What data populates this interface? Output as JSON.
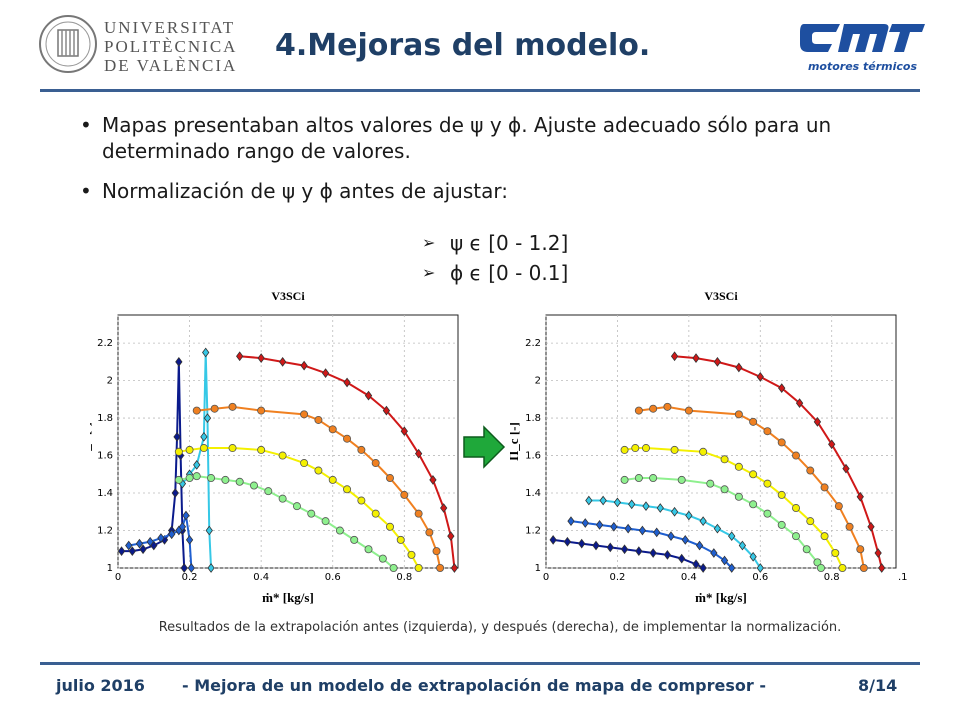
{
  "logos": {
    "upv": [
      "UNIVERSITAT",
      "POLITÈCNICA",
      "DE VALÈNCIA"
    ],
    "cmt_sub": "motores térmicos"
  },
  "slide": {
    "title": "4.Mejoras del modelo."
  },
  "bullets": [
    {
      "symbol": "•",
      "text": "Mapas presentaban altos valores de ψ y ϕ. Ajuste adecuado sólo para un determinado rango de valores."
    },
    {
      "symbol": "•",
      "text": "Normalización de ψ y ϕ antes de ajustar:"
    }
  ],
  "subbullets": [
    {
      "symbol": "➢",
      "text": "ψ ϵ [0 - 1.2]"
    },
    {
      "symbol": "➢",
      "text": "ϕ ϵ [0 - 0.1]"
    }
  ],
  "plots": {
    "left_title": "V3SCi",
    "right_title": "V3SCi",
    "ylabel": "Π_c [-]",
    "xlabel": "ṁ* [kg/s]",
    "right_edge_tick": ".1"
  },
  "caption": "Resultados de la extrapolación antes (izquierda), y después (derecha), de implementar la normalización.",
  "footer": {
    "date": "julio 2016",
    "title": "- Mejora de un modelo de extrapolación de mapa de compresor -",
    "page": "8/14"
  },
  "chart_data": [
    {
      "type": "scatter",
      "title": "V3SCi",
      "xlabel": "ṁ* [kg/s]",
      "ylabel": "Πc [-]",
      "xlim": [
        0,
        0.95
      ],
      "ylim": [
        1,
        2.35
      ],
      "xticks": [
        "0",
        "0.2",
        "0.4",
        "0.6",
        "0.8"
      ],
      "yticks": [
        "1",
        "1.2",
        "1.4",
        "1.6",
        "1.8",
        "2",
        "2.2"
      ],
      "grid": true,
      "series": [
        {
          "color": "#0a1a8c",
          "marker": "diamond",
          "points": [
            [
              0.01,
              1.09
            ],
            [
              0.04,
              1.09
            ],
            [
              0.07,
              1.1
            ],
            [
              0.1,
              1.12
            ],
            [
              0.13,
              1.15
            ],
            [
              0.15,
              1.2
            ],
            [
              0.16,
              1.4
            ],
            [
              0.165,
              1.7
            ],
            [
              0.17,
              2.1
            ],
            [
              0.175,
              1.6
            ],
            [
              0.18,
              1.2
            ],
            [
              0.185,
              1.0
            ]
          ]
        },
        {
          "color": "#1f5fd0",
          "marker": "diamond",
          "points": [
            [
              0.03,
              1.12
            ],
            [
              0.06,
              1.13
            ],
            [
              0.09,
              1.14
            ],
            [
              0.12,
              1.16
            ],
            [
              0.15,
              1.18
            ],
            [
              0.17,
              1.2
            ],
            [
              0.18,
              1.22
            ],
            [
              0.19,
              1.28
            ],
            [
              0.2,
              1.15
            ],
            [
              0.205,
              1.0
            ]
          ]
        },
        {
          "color": "#36c8e6",
          "marker": "diamond",
          "points": [
            [
              0.18,
              1.45
            ],
            [
              0.2,
              1.5
            ],
            [
              0.22,
              1.55
            ],
            [
              0.24,
              1.7
            ],
            [
              0.245,
              2.15
            ],
            [
              0.25,
              1.8
            ],
            [
              0.255,
              1.2
            ],
            [
              0.26,
              1.0
            ]
          ]
        },
        {
          "color": "#8ef08e",
          "marker": "circle",
          "points": [
            [
              0.17,
              1.47
            ],
            [
              0.2,
              1.48
            ],
            [
              0.22,
              1.49
            ],
            [
              0.26,
              1.48
            ],
            [
              0.3,
              1.47
            ],
            [
              0.34,
              1.46
            ],
            [
              0.38,
              1.44
            ],
            [
              0.42,
              1.41
            ],
            [
              0.46,
              1.37
            ],
            [
              0.5,
              1.33
            ],
            [
              0.54,
              1.29
            ],
            [
              0.58,
              1.25
            ],
            [
              0.62,
              1.2
            ],
            [
              0.66,
              1.15
            ],
            [
              0.7,
              1.1
            ],
            [
              0.74,
              1.05
            ],
            [
              0.77,
              1.0
            ]
          ]
        },
        {
          "color": "#f4f000",
          "marker": "circle",
          "points": [
            [
              0.17,
              1.62
            ],
            [
              0.2,
              1.63
            ],
            [
              0.24,
              1.64
            ],
            [
              0.32,
              1.64
            ],
            [
              0.4,
              1.63
            ],
            [
              0.46,
              1.6
            ],
            [
              0.52,
              1.56
            ],
            [
              0.56,
              1.52
            ],
            [
              0.6,
              1.47
            ],
            [
              0.64,
              1.42
            ],
            [
              0.68,
              1.36
            ],
            [
              0.72,
              1.29
            ],
            [
              0.76,
              1.22
            ],
            [
              0.79,
              1.15
            ],
            [
              0.82,
              1.07
            ],
            [
              0.84,
              1.0
            ]
          ]
        },
        {
          "color": "#f08020",
          "marker": "circle",
          "points": [
            [
              0.22,
              1.84
            ],
            [
              0.27,
              1.85
            ],
            [
              0.32,
              1.86
            ],
            [
              0.4,
              1.84
            ],
            [
              0.52,
              1.82
            ],
            [
              0.56,
              1.79
            ],
            [
              0.6,
              1.74
            ],
            [
              0.64,
              1.69
            ],
            [
              0.68,
              1.63
            ],
            [
              0.72,
              1.56
            ],
            [
              0.76,
              1.48
            ],
            [
              0.8,
              1.39
            ],
            [
              0.84,
              1.29
            ],
            [
              0.87,
              1.19
            ],
            [
              0.89,
              1.09
            ],
            [
              0.9,
              1.0
            ]
          ]
        },
        {
          "color": "#d01818",
          "marker": "diamond",
          "points": [
            [
              0.34,
              2.13
            ],
            [
              0.4,
              2.12
            ],
            [
              0.46,
              2.1
            ],
            [
              0.52,
              2.08
            ],
            [
              0.58,
              2.04
            ],
            [
              0.64,
              1.99
            ],
            [
              0.7,
              1.92
            ],
            [
              0.75,
              1.84
            ],
            [
              0.8,
              1.73
            ],
            [
              0.84,
              1.61
            ],
            [
              0.88,
              1.47
            ],
            [
              0.91,
              1.32
            ],
            [
              0.93,
              1.17
            ],
            [
              0.94,
              1.0
            ]
          ]
        }
      ]
    },
    {
      "type": "scatter",
      "title": "V3SCi",
      "xlabel": "ṁ* [kg/s]",
      "ylabel": "Πc [-]",
      "xlim": [
        0,
        0.98
      ],
      "ylim": [
        1,
        2.35
      ],
      "xticks": [
        "0",
        "0.2",
        "0.4",
        "0.6",
        "0.8"
      ],
      "yticks": [
        "1",
        "1.2",
        "1.4",
        "1.6",
        "1.8",
        "2",
        "2.2"
      ],
      "grid": true,
      "series": [
        {
          "color": "#0a1a8c",
          "marker": "diamond",
          "points": [
            [
              0.02,
              1.15
            ],
            [
              0.06,
              1.14
            ],
            [
              0.1,
              1.13
            ],
            [
              0.14,
              1.12
            ],
            [
              0.18,
              1.11
            ],
            [
              0.22,
              1.1
            ],
            [
              0.26,
              1.09
            ],
            [
              0.3,
              1.08
            ],
            [
              0.34,
              1.07
            ],
            [
              0.38,
              1.05
            ],
            [
              0.42,
              1.02
            ],
            [
              0.44,
              1.0
            ]
          ]
        },
        {
          "color": "#1f5fd0",
          "marker": "diamond",
          "points": [
            [
              0.07,
              1.25
            ],
            [
              0.11,
              1.24
            ],
            [
              0.15,
              1.23
            ],
            [
              0.19,
              1.22
            ],
            [
              0.23,
              1.21
            ],
            [
              0.27,
              1.2
            ],
            [
              0.31,
              1.19
            ],
            [
              0.35,
              1.17
            ],
            [
              0.39,
              1.15
            ],
            [
              0.43,
              1.12
            ],
            [
              0.47,
              1.08
            ],
            [
              0.5,
              1.04
            ],
            [
              0.52,
              1.0
            ]
          ]
        },
        {
          "color": "#36c8e6",
          "marker": "diamond",
          "points": [
            [
              0.12,
              1.36
            ],
            [
              0.16,
              1.36
            ],
            [
              0.2,
              1.35
            ],
            [
              0.24,
              1.34
            ],
            [
              0.28,
              1.33
            ],
            [
              0.32,
              1.32
            ],
            [
              0.36,
              1.3
            ],
            [
              0.4,
              1.28
            ],
            [
              0.44,
              1.25
            ],
            [
              0.48,
              1.21
            ],
            [
              0.52,
              1.17
            ],
            [
              0.55,
              1.12
            ],
            [
              0.58,
              1.06
            ],
            [
              0.6,
              1.0
            ]
          ]
        },
        {
          "color": "#8ef08e",
          "marker": "circle",
          "points": [
            [
              0.22,
              1.47
            ],
            [
              0.26,
              1.48
            ],
            [
              0.3,
              1.48
            ],
            [
              0.38,
              1.47
            ],
            [
              0.46,
              1.45
            ],
            [
              0.5,
              1.42
            ],
            [
              0.54,
              1.38
            ],
            [
              0.58,
              1.34
            ],
            [
              0.62,
              1.29
            ],
            [
              0.66,
              1.23
            ],
            [
              0.7,
              1.17
            ],
            [
              0.73,
              1.1
            ],
            [
              0.76,
              1.03
            ],
            [
              0.77,
              1.0
            ]
          ]
        },
        {
          "color": "#f4f000",
          "marker": "circle",
          "points": [
            [
              0.22,
              1.63
            ],
            [
              0.25,
              1.64
            ],
            [
              0.28,
              1.64
            ],
            [
              0.36,
              1.63
            ],
            [
              0.44,
              1.62
            ],
            [
              0.5,
              1.58
            ],
            [
              0.54,
              1.54
            ],
            [
              0.58,
              1.5
            ],
            [
              0.62,
              1.45
            ],
            [
              0.66,
              1.39
            ],
            [
              0.7,
              1.32
            ],
            [
              0.74,
              1.25
            ],
            [
              0.78,
              1.17
            ],
            [
              0.81,
              1.08
            ],
            [
              0.83,
              1.0
            ]
          ]
        },
        {
          "color": "#f08020",
          "marker": "circle",
          "points": [
            [
              0.26,
              1.84
            ],
            [
              0.3,
              1.85
            ],
            [
              0.34,
              1.86
            ],
            [
              0.4,
              1.84
            ],
            [
              0.54,
              1.82
            ],
            [
              0.58,
              1.78
            ],
            [
              0.62,
              1.73
            ],
            [
              0.66,
              1.67
            ],
            [
              0.7,
              1.6
            ],
            [
              0.74,
              1.52
            ],
            [
              0.78,
              1.43
            ],
            [
              0.82,
              1.33
            ],
            [
              0.85,
              1.22
            ],
            [
              0.88,
              1.1
            ],
            [
              0.89,
              1.0
            ]
          ]
        },
        {
          "color": "#d01818",
          "marker": "diamond",
          "points": [
            [
              0.36,
              2.13
            ],
            [
              0.42,
              2.12
            ],
            [
              0.48,
              2.1
            ],
            [
              0.54,
              2.07
            ],
            [
              0.6,
              2.02
            ],
            [
              0.66,
              1.96
            ],
            [
              0.71,
              1.88
            ],
            [
              0.76,
              1.78
            ],
            [
              0.8,
              1.66
            ],
            [
              0.84,
              1.53
            ],
            [
              0.88,
              1.38
            ],
            [
              0.91,
              1.22
            ],
            [
              0.93,
              1.08
            ],
            [
              0.94,
              1.0
            ]
          ]
        }
      ]
    }
  ]
}
